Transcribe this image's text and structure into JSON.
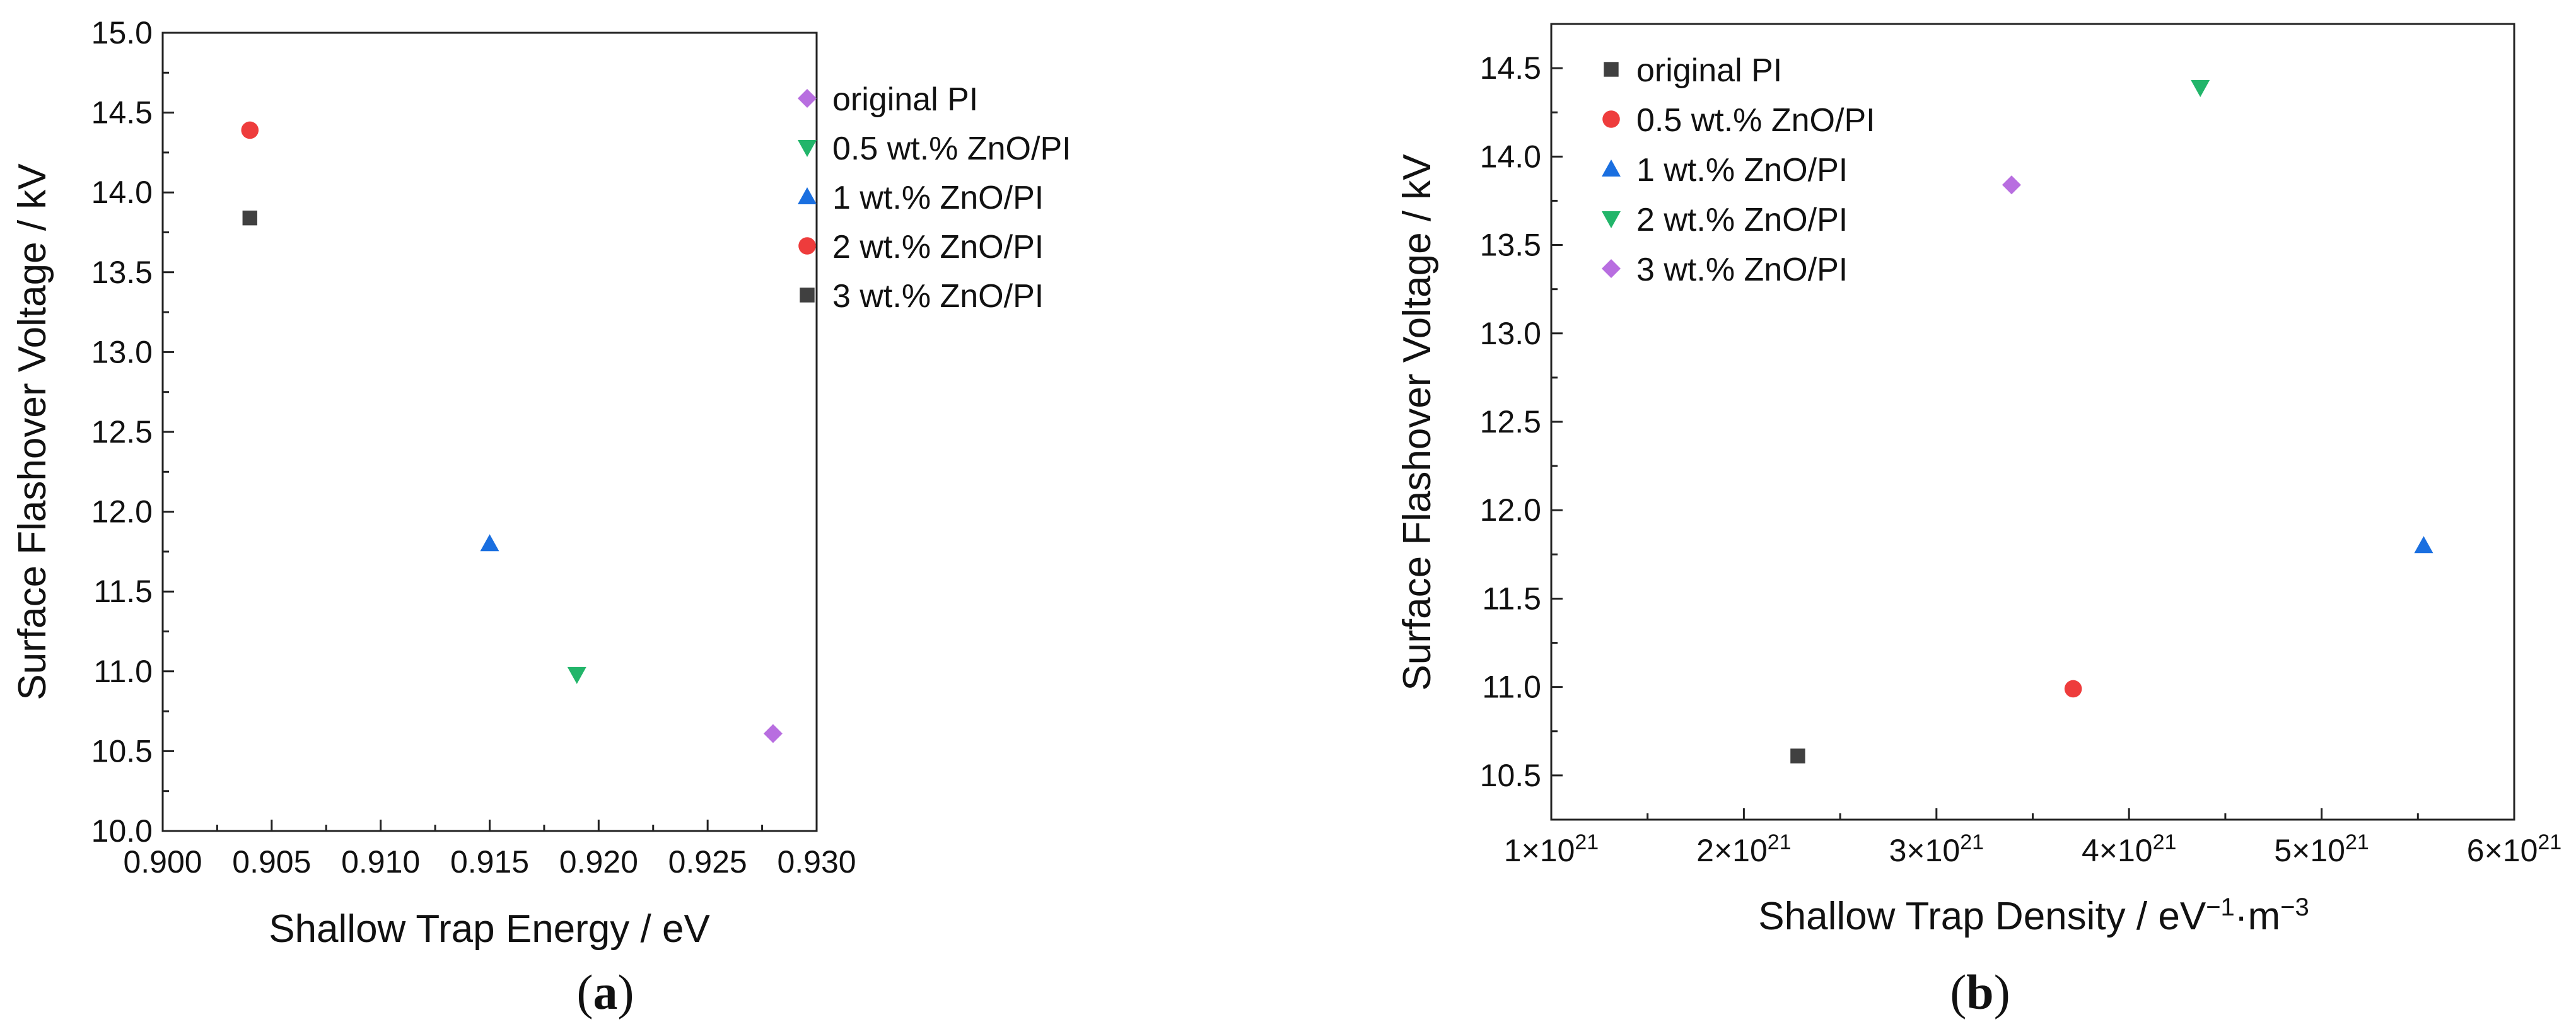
{
  "colors": {
    "gray": "#404040",
    "red": "#ee3c3c",
    "blue": "#1a6fe0",
    "green": "#22b56a",
    "purple": "#b86ee0"
  },
  "chart_data": [
    {
      "type": "scatter",
      "panel_label": {
        "open": "(",
        "letter": "a",
        "close": ")"
      },
      "title": "",
      "xlabel": "Shallow Trap Energy / eV",
      "ylabel": "Surface Flashover Voltage / kV",
      "xlim": [
        0.9,
        0.93
      ],
      "ylim": [
        10.0,
        15.0
      ],
      "xticks": [
        "0.900",
        "0.905",
        "0.910",
        "0.915",
        "0.920",
        "0.925",
        "0.930"
      ],
      "yticks": [
        "10.0",
        "10.5",
        "11.0",
        "11.5",
        "12.0",
        "12.5",
        "13.0",
        "13.5",
        "14.0",
        "14.5",
        "15.0"
      ],
      "legend_position": "top-right",
      "series": [
        {
          "name": "original PI",
          "marker": "diamond",
          "color": "purple",
          "x": [
            0.928
          ],
          "y": [
            10.61
          ]
        },
        {
          "name": "0.5 wt.% ZnO/PI",
          "marker": "triangle-down",
          "color": "green",
          "x": [
            0.919
          ],
          "y": [
            10.98
          ]
        },
        {
          "name": "1 wt.% ZnO/PI",
          "marker": "triangle-up",
          "color": "blue",
          "x": [
            0.915
          ],
          "y": [
            11.8
          ]
        },
        {
          "name": "2 wt.% ZnO/PI",
          "marker": "circle",
          "color": "red",
          "x": [
            0.904
          ],
          "y": [
            14.39
          ]
        },
        {
          "name": "3 wt.% ZnO/PI",
          "marker": "square",
          "color": "gray",
          "x": [
            0.904
          ],
          "y": [
            13.84
          ]
        }
      ]
    },
    {
      "type": "scatter",
      "panel_label": {
        "open": "(",
        "letter": "b",
        "close": ")"
      },
      "title": "",
      "xlabel": {
        "base": "Shallow Trap Density / eV",
        "sup1": "−1",
        "mid": "·m",
        "sup2": "−3"
      },
      "ylabel": "Surface Flashover Voltage / kV",
      "xlim": [
        1e+21,
        6e+21
      ],
      "ylim": [
        10.25,
        14.75
      ],
      "xticks": [
        {
          "base": "1×10",
          "exp": "21"
        },
        {
          "base": "2×10",
          "exp": "21"
        },
        {
          "base": "3×10",
          "exp": "21"
        },
        {
          "base": "4×10",
          "exp": "21"
        },
        {
          "base": "5×10",
          "exp": "21"
        },
        {
          "base": "6×10",
          "exp": "21"
        }
      ],
      "xtick_values": [
        1e+21,
        2e+21,
        3e+21,
        4e+21,
        5e+21,
        6e+21
      ],
      "yticks": [
        "10.5",
        "11.0",
        "11.5",
        "12.0",
        "12.5",
        "13.0",
        "13.5",
        "14.0",
        "14.5"
      ],
      "legend_position": "top-left",
      "series": [
        {
          "name": "original PI",
          "marker": "square",
          "color": "gray",
          "x": [
            2.28e+21
          ],
          "y": [
            10.61
          ]
        },
        {
          "name": "0.5 wt.% ZnO/PI",
          "marker": "circle",
          "color": "red",
          "x": [
            3.71e+21
          ],
          "y": [
            10.99
          ]
        },
        {
          "name": "1 wt.% ZnO/PI",
          "marker": "triangle-up",
          "color": "blue",
          "x": [
            5.53e+21
          ],
          "y": [
            11.8
          ]
        },
        {
          "name": "2 wt.% ZnO/PI",
          "marker": "triangle-down",
          "color": "green",
          "x": [
            4.37e+21
          ],
          "y": [
            14.39
          ]
        },
        {
          "name": "3 wt.% ZnO/PI",
          "marker": "diamond",
          "color": "purple",
          "x": [
            3.39e+21
          ],
          "y": [
            13.84
          ]
        }
      ]
    }
  ]
}
